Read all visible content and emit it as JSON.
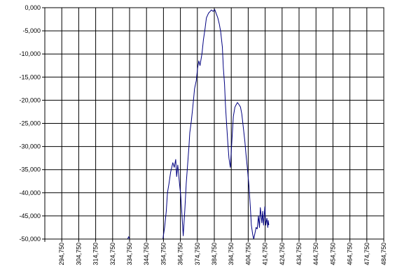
{
  "chart_data": {
    "type": "line",
    "title": "",
    "xlabel": "",
    "ylabel": "",
    "xlim": [
      284.75,
      484.75
    ],
    "ylim": [
      -50,
      0
    ],
    "grid": true,
    "legend": "none",
    "x_tick_labels": [
      "294,750",
      "304,750",
      "314,750",
      "324,750",
      "334,750",
      "344,750",
      "354,750",
      "364,750",
      "374,750",
      "384,750",
      "394,750",
      "404,750",
      "414,750",
      "424,750",
      "434,750",
      "444,750",
      "454,750",
      "464,750",
      "474,750",
      "484,750"
    ],
    "y_tick_labels": [
      "0,000",
      "-5,000",
      "-10,000",
      "-15,000",
      "-20,000",
      "-25,000",
      "-30,000",
      "-35,000",
      "-40,000",
      "-45,000",
      "-50,000"
    ],
    "line_color": "#000080",
    "series": [
      {
        "x": [
          333.6,
          334.2,
          334.8,
          354.4,
          355.4,
          356.4,
          357.1,
          358.0,
          359.0,
          360.3,
          361.1,
          362.0,
          362.5,
          363.2,
          364.2,
          364.9,
          365.6,
          366.4,
          367.3,
          368.2,
          368.9,
          369.8,
          370.3,
          371.2,
          372.2,
          373.1,
          374.1,
          374.9,
          375.6,
          376.3,
          377.5,
          378.3,
          379.3,
          380.1,
          381.3,
          382.3,
          383.0,
          384.0,
          385.0,
          385.9,
          386.8,
          387.7,
          388.5,
          389.5,
          390.1,
          390.8,
          391.3,
          392.0,
          392.7,
          393.4,
          394.2,
          395.1,
          396.0,
          396.9,
          397.6,
          398.4,
          399.4,
          400.2,
          401.0,
          401.9,
          402.8,
          403.4,
          404.2,
          405.2,
          406.0,
          406.6,
          407.4,
          408.0,
          409.4,
          410.1,
          410.8,
          411.4,
          411.9,
          412.8,
          413.3,
          413.8,
          414.6,
          415.1,
          415.8,
          416.3,
          416.6,
          416.9
        ],
        "y": [
          -50.0,
          -49.5,
          -50.0,
          -50.0,
          -47.5,
          -44.0,
          -40.0,
          -38.0,
          -35.5,
          -33.5,
          -34.5,
          -32.8,
          -36.5,
          -34.0,
          -38.0,
          -40.5,
          -44.5,
          -49.3,
          -44.0,
          -38.0,
          -34.5,
          -30.0,
          -27.0,
          -24.5,
          -21.0,
          -17.5,
          -15.8,
          -13.0,
          -11.5,
          -12.5,
          -9.8,
          -7.0,
          -4.5,
          -2.2,
          -1.2,
          -0.8,
          -0.5,
          -0.8,
          -0.4,
          -1.3,
          -2.2,
          -3.5,
          -5.2,
          -8.5,
          -13.0,
          -16.5,
          -21.0,
          -25.0,
          -29.0,
          -32.5,
          -34.5,
          -29.0,
          -23.5,
          -21.5,
          -21.0,
          -20.5,
          -21.0,
          -21.5,
          -23.0,
          -26.0,
          -29.0,
          -31.5,
          -34.5,
          -38.5,
          -43.0,
          -47.0,
          -49.0,
          -50.0,
          -47.5,
          -47.8,
          -45.0,
          -47.5,
          -43.2,
          -46.5,
          -44.0,
          -47.0,
          -43.0,
          -47.0,
          -45.5,
          -47.5,
          -46.0,
          -47.0
        ]
      }
    ]
  }
}
